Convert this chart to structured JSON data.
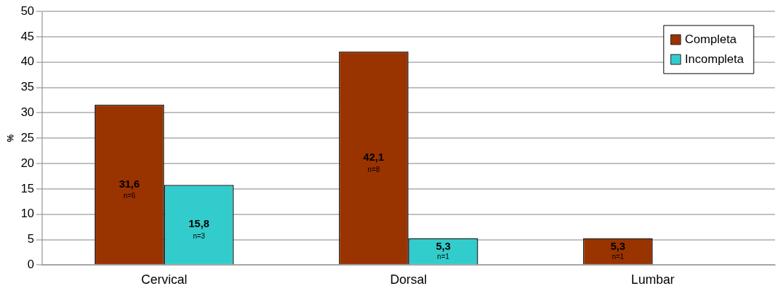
{
  "chart_data": {
    "type": "bar",
    "ylabel": "%",
    "categories": [
      "Cervical",
      "Dorsal",
      "Lumbar"
    ],
    "series": [
      {
        "name": "Completa",
        "color": "#993300",
        "values": [
          31.6,
          42.1,
          5.3
        ],
        "value_labels": [
          "31,6\nn=6",
          "42,1\nn=8",
          "5,3\nn=1"
        ]
      },
      {
        "name": "Incompleta",
        "color": "#33cccc",
        "values": [
          15.8,
          5.3,
          0
        ],
        "value_labels": [
          "15,8\nn=3",
          "5,3\nn=1",
          null
        ]
      }
    ],
    "ylim": [
      0,
      50
    ],
    "yticks": [
      0,
      5,
      10,
      15,
      20,
      25,
      30,
      35,
      40,
      45,
      50
    ],
    "grid": "y",
    "legend": "top right"
  }
}
